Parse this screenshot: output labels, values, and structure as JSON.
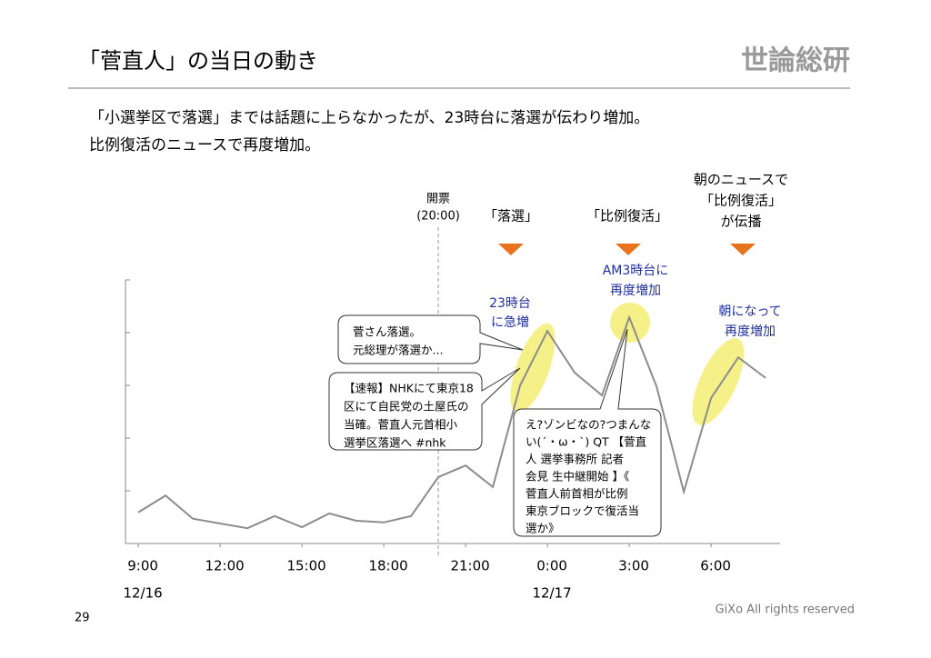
{
  "header": {
    "title": "「菅直人」の当日の動き",
    "logo": "世論総研"
  },
  "subtitle": [
    "「小選挙区で落選」までは話題に上らなかったが、23時台に落選が伝わり増加。",
    "比例復活のニュースで再度増加。"
  ],
  "chart_data": {
    "type": "line",
    "x": [
      9,
      10,
      11,
      12,
      13,
      14,
      15,
      16,
      17,
      18,
      19,
      20,
      21,
      22,
      23,
      24,
      25,
      26,
      27,
      28,
      29,
      30,
      31,
      32
    ],
    "series": [
      {
        "color": "#8c8c8c",
        "values": [
          0.59,
          0.91,
          0.47,
          0.38,
          0.29,
          0.52,
          0.31,
          0.57,
          0.43,
          0.4,
          0.52,
          1.26,
          1.48,
          1.07,
          3.0,
          4.03,
          3.24,
          2.81,
          4.29,
          2.98,
          0.98,
          2.76,
          3.53,
          3.14
        ]
      }
    ],
    "xlim": [
      8.53,
      32.53
    ],
    "ylim": [
      0,
      5
    ],
    "yticks": [
      0,
      1,
      2,
      3,
      4,
      5
    ],
    "xticks": [
      {
        "value": 9,
        "label": "9:00"
      },
      {
        "value": 12,
        "label": "12:00"
      },
      {
        "value": 15,
        "label": "15:00"
      },
      {
        "value": 18,
        "label": "18:00"
      },
      {
        "value": 21,
        "label": "21:00"
      },
      {
        "value": 24,
        "label": "0:00"
      },
      {
        "value": 27,
        "label": "3:00"
      },
      {
        "value": 30,
        "label": "6:00"
      }
    ],
    "date_ticks": [
      {
        "value": 9,
        "label": "12/16"
      },
      {
        "value": 24,
        "label": "12/17"
      }
    ],
    "events": [
      {
        "x": 20,
        "lines": [
          "開票",
          "(20:00)"
        ]
      },
      {
        "lines": [
          "「落選」"
        ]
      },
      {
        "lines": [
          "「比例復活」"
        ]
      },
      {
        "lines": [
          "朝のニュースで",
          "「比例復活」",
          "が伝播"
        ]
      }
    ],
    "highlights": [
      [
        "23時台",
        "に急増"
      ],
      [
        "AM3時台に",
        "再度増加"
      ],
      [
        "朝になって",
        "再度増加"
      ]
    ],
    "bubbles": [
      [
        "菅さん落選。",
        "元総理が落選か..."
      ],
      [
        "【速報】NHKにて東京18",
        "区にて自民党の土屋氏の",
        "当確。菅直人元首相小",
        "選挙区落選へ #nhk"
      ],
      [
        "え?ゾンビなの?つまんな",
        "い(´・ω・`) QT 【菅直",
        "人 選挙事務所 記者",
        "会見 生中継開始 】《",
        "菅直人前首相が比例",
        "東京ブロックで復活当",
        "選か》"
      ]
    ]
  },
  "footer": {
    "page": "29",
    "copyright": "GiXo All rights reserved"
  }
}
